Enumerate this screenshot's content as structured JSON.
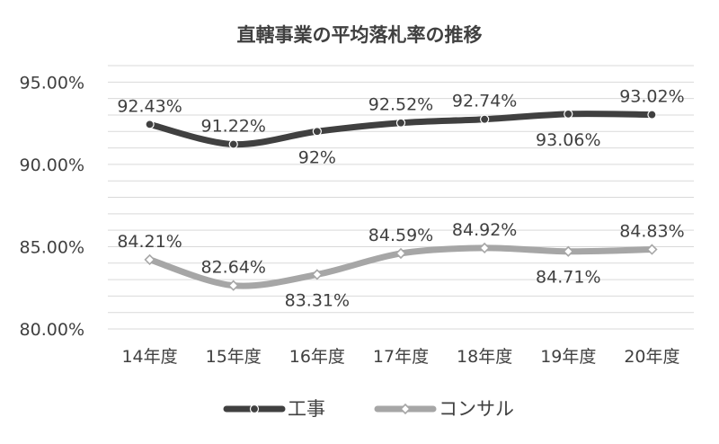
{
  "chart_data": {
    "type": "line",
    "title": "直轄事業の平均落札率の推移",
    "categories": [
      "14年度",
      "15年度",
      "16年度",
      "17年度",
      "18年度",
      "19年度",
      "20年度"
    ],
    "ylim": [
      80,
      96
    ],
    "yticks": [
      {
        "value": 95,
        "label": "95.00%"
      },
      {
        "value": 90,
        "label": "90.00%"
      },
      {
        "value": 85,
        "label": "85.00%"
      },
      {
        "value": 80,
        "label": "80.00%"
      }
    ],
    "grid": true,
    "legend_position": "bottom",
    "series": [
      {
        "name": "工事",
        "color": "#404040",
        "marker": "circle",
        "values": [
          92.43,
          91.22,
          92.0,
          92.52,
          92.74,
          93.06,
          93.02
        ],
        "labels": [
          "92.43%",
          "91.22%",
          "92%",
          "92.52%",
          "92.74%",
          "93.06%",
          "93.02%"
        ],
        "label_side": [
          "above",
          "above",
          "below",
          "above",
          "above",
          "below",
          "above"
        ]
      },
      {
        "name": "コンサル",
        "color": "#a6a6a6",
        "marker": "diamond",
        "values": [
          84.21,
          82.64,
          83.31,
          84.59,
          84.92,
          84.71,
          84.83
        ],
        "labels": [
          "84.21%",
          "82.64%",
          "83.31%",
          "84.59%",
          "84.92%",
          "84.71%",
          "84.83%"
        ],
        "label_side": [
          "above",
          "above",
          "below",
          "above",
          "above",
          "below",
          "above"
        ]
      }
    ]
  }
}
